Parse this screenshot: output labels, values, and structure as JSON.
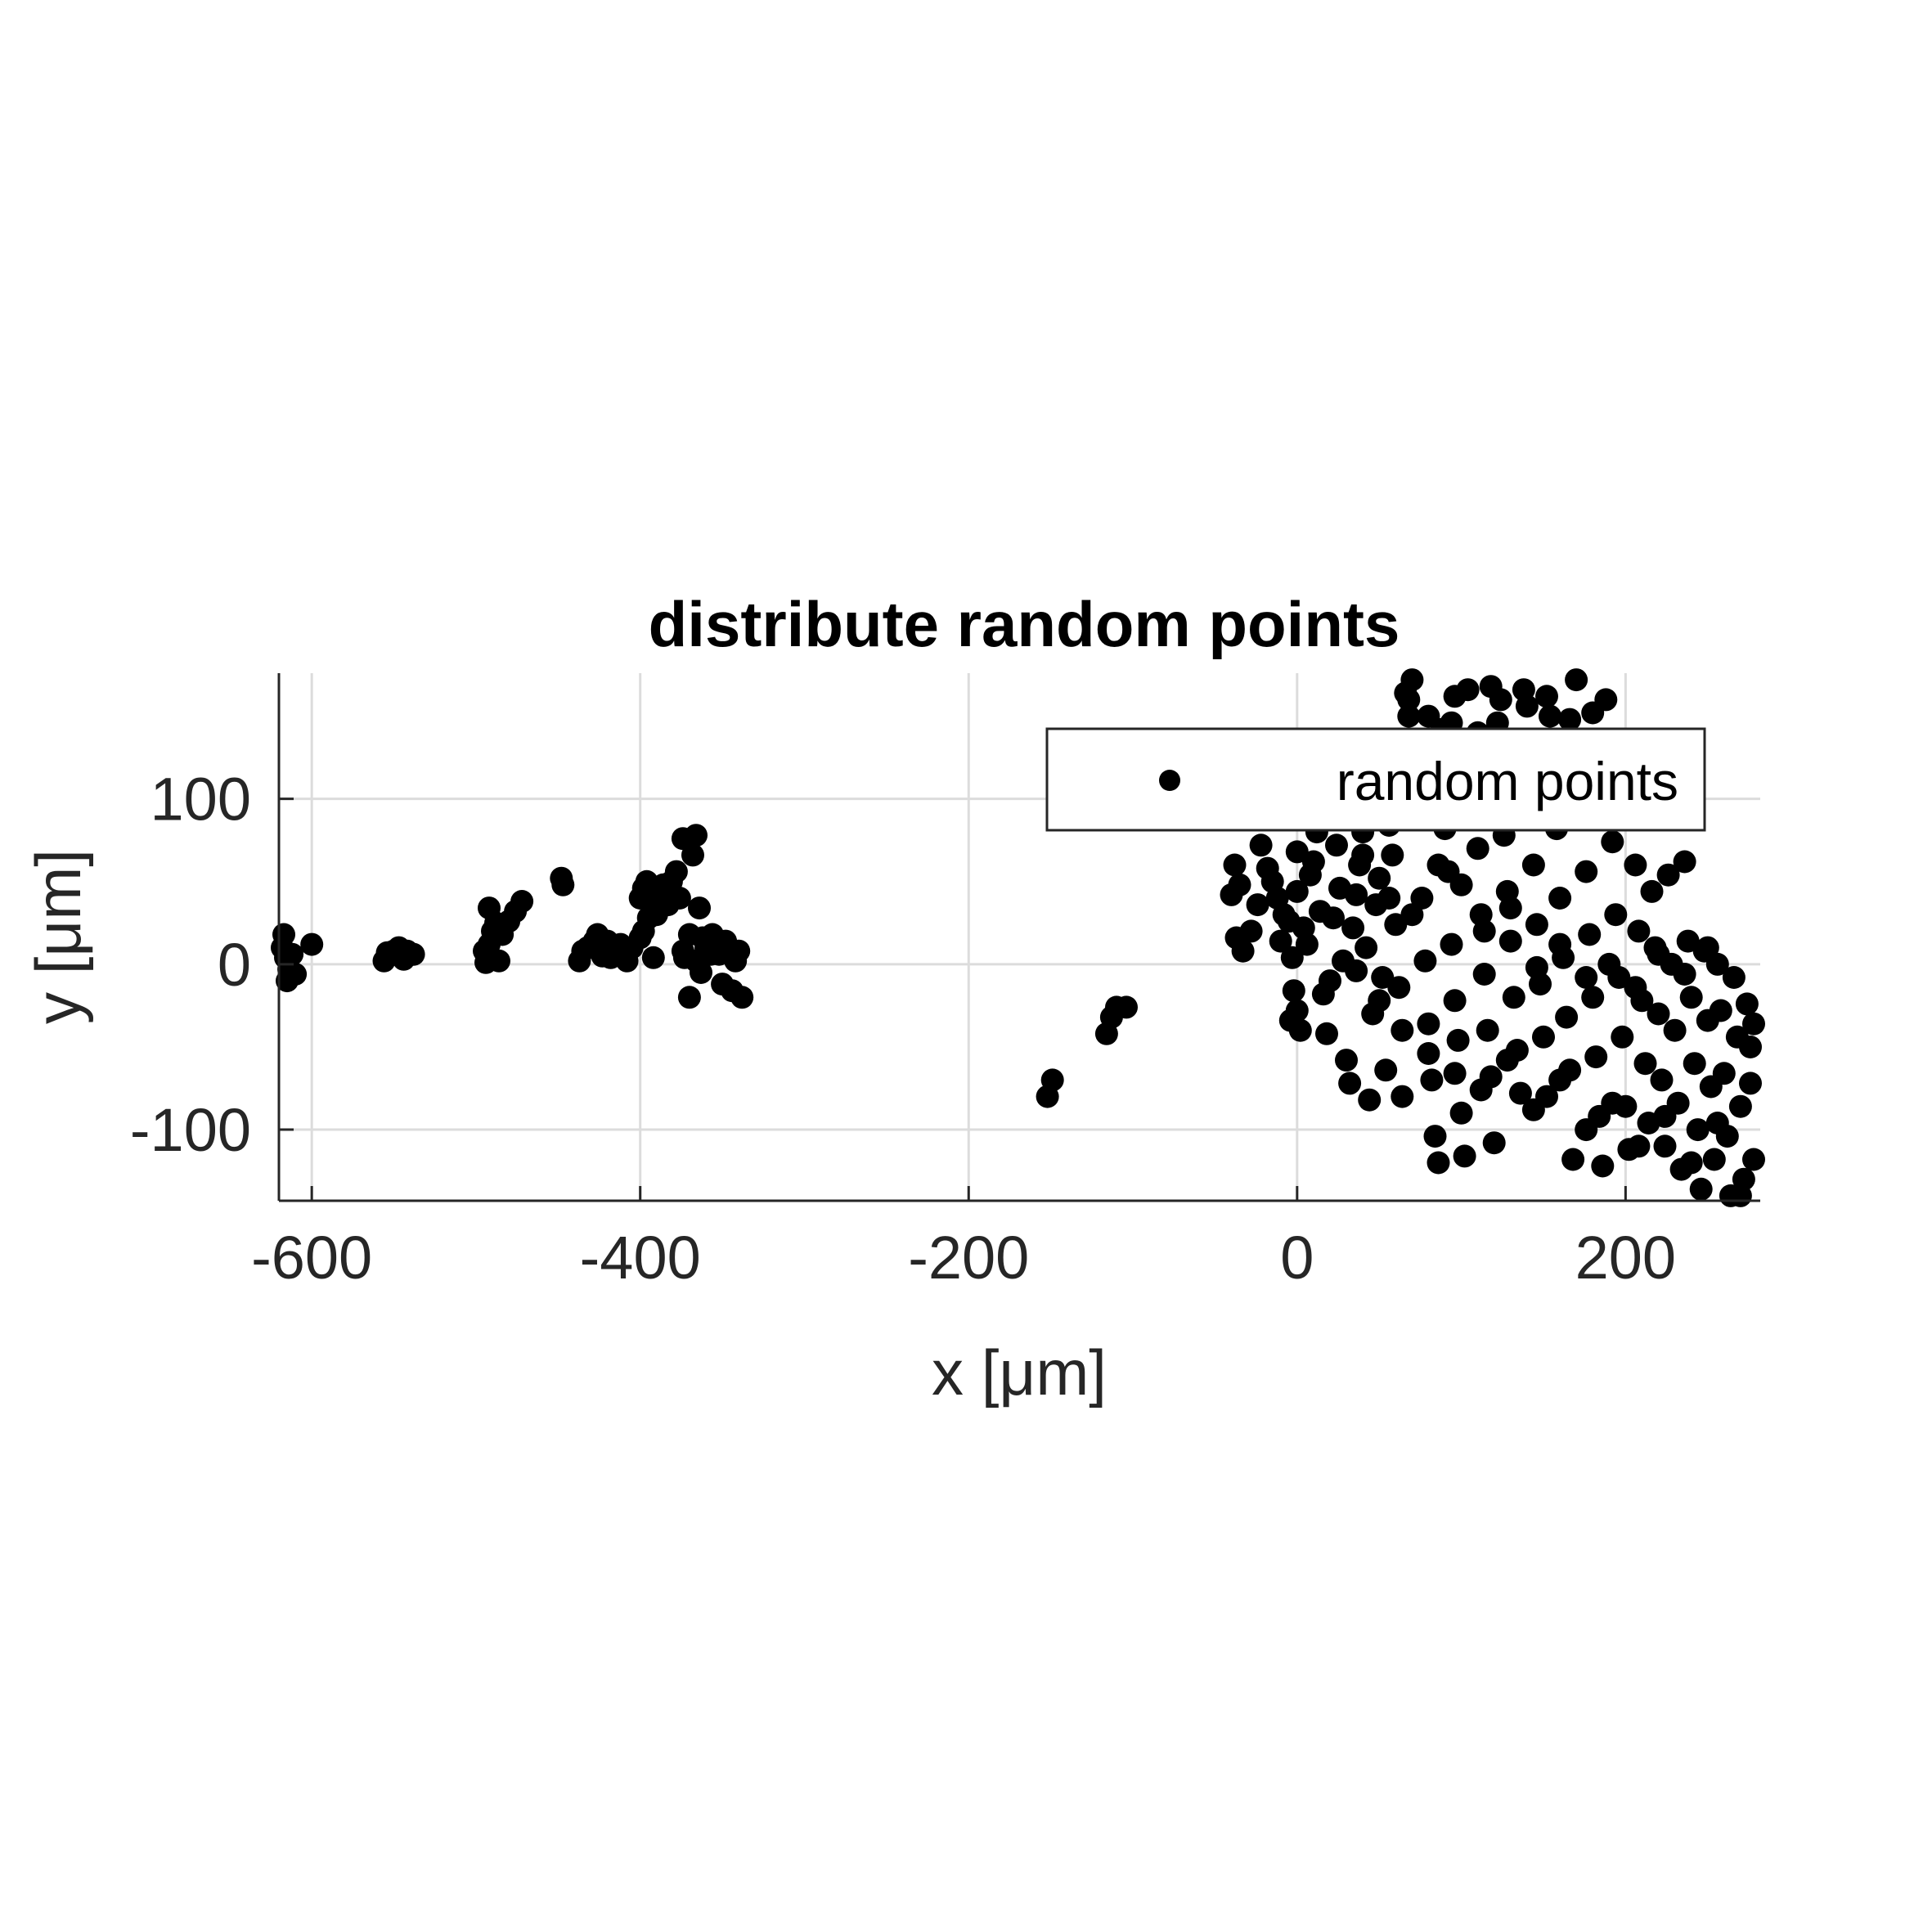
{
  "chart_data": {
    "type": "scatter",
    "title": "distribute random points",
    "xlabel": "x [μm]",
    "ylabel": "y [μm]",
    "xlim": [
      -620,
      282
    ],
    "ylim": [
      -143,
      176
    ],
    "xticks": [
      -600,
      -400,
      -200,
      0,
      200
    ],
    "yticks": [
      -100,
      0,
      100
    ],
    "xtick_labels": [
      "-600",
      "-400",
      "-200",
      "0",
      "200"
    ],
    "ytick_labels": [
      "-100",
      "0",
      "100"
    ],
    "grid": true,
    "legend": {
      "position": "top-right",
      "entries": [
        "random points"
      ]
    },
    "series": [
      {
        "name": "random points",
        "color": "#000000",
        "marker": "filled-circle",
        "points": [
          [
            -617,
            18
          ],
          [
            -618,
            10
          ],
          [
            -616,
            4
          ],
          [
            -614,
            -3
          ],
          [
            -615,
            -10
          ],
          [
            -610,
            -6
          ],
          [
            -612,
            6
          ],
          [
            -600,
            12
          ],
          [
            -556,
            2
          ],
          [
            -554,
            7
          ],
          [
            -550,
            8
          ],
          [
            -547,
            10
          ],
          [
            -544,
            3
          ],
          [
            -542,
            8
          ],
          [
            -538,
            6
          ],
          [
            -494,
            1
          ],
          [
            -495,
            8
          ],
          [
            -492,
            12
          ],
          [
            -490,
            20
          ],
          [
            -488,
            25
          ],
          [
            -486,
            2
          ],
          [
            -484,
            18
          ],
          [
            -480,
            26
          ],
          [
            -476,
            32
          ],
          [
            -472,
            38
          ],
          [
            -492,
            34
          ],
          [
            -448,
            52
          ],
          [
            -447,
            48
          ],
          [
            -437,
            2
          ],
          [
            -435,
            8
          ],
          [
            -432,
            10
          ],
          [
            -428,
            14
          ],
          [
            -426,
            18
          ],
          [
            -423,
            5
          ],
          [
            -420,
            14
          ],
          [
            -418,
            4
          ],
          [
            -415,
            10
          ],
          [
            -412,
            12
          ],
          [
            -408,
            2
          ],
          [
            -405,
            10
          ],
          [
            -400,
            16
          ],
          [
            -398,
            20
          ],
          [
            -395,
            28
          ],
          [
            -400,
            40
          ],
          [
            -398,
            46
          ],
          [
            -396,
            50
          ],
          [
            -392,
            38
          ],
          [
            -390,
            30
          ],
          [
            -388,
            44
          ],
          [
            -386,
            48
          ],
          [
            -392,
            4
          ],
          [
            -383,
            36
          ],
          [
            -381,
            50
          ],
          [
            -378,
            56
          ],
          [
            -376,
            40
          ],
          [
            -374,
            8
          ],
          [
            -370,
            18
          ],
          [
            -374,
            76
          ],
          [
            -366,
            78
          ],
          [
            -368,
            66
          ],
          [
            -364,
            34
          ],
          [
            -366,
            2
          ],
          [
            -363,
            -5
          ],
          [
            -362,
            16
          ],
          [
            -360,
            10
          ],
          [
            -357,
            6
          ],
          [
            -356,
            18
          ],
          [
            -352,
            6
          ],
          [
            -350,
            -12
          ],
          [
            -348,
            14
          ],
          [
            -344,
            -16
          ],
          [
            -342,
            2
          ],
          [
            -340,
            8
          ],
          [
            -338,
            -20
          ],
          [
            -355,
            12
          ],
          [
            -370,
            -20
          ],
          [
            -373,
            4
          ],
          [
            -152,
            -80
          ],
          [
            -149,
            -70
          ],
          [
            -116,
            -42
          ],
          [
            -113,
            -32
          ],
          [
            -110,
            -26
          ],
          [
            -104,
            -26
          ],
          [
            -38,
            60
          ],
          [
            -35,
            48
          ],
          [
            -40,
            42
          ],
          [
            -37,
            16
          ],
          [
            -33,
            8
          ],
          [
            -28,
            20
          ],
          [
            -24,
            36
          ],
          [
            -22,
            72
          ],
          [
            -18,
            58
          ],
          [
            -15,
            50
          ],
          [
            -12,
            40
          ],
          [
            -10,
            14
          ],
          [
            -8,
            30
          ],
          [
            -5,
            26
          ],
          [
            -3,
            4
          ],
          [
            0,
            68
          ],
          [
            0,
            44
          ],
          [
            -2,
            -16
          ],
          [
            -4,
            -34
          ],
          [
            0,
            -28
          ],
          [
            2,
            -40
          ],
          [
            4,
            22
          ],
          [
            6,
            12
          ],
          [
            8,
            54
          ],
          [
            10,
            62
          ],
          [
            12,
            80
          ],
          [
            14,
            32
          ],
          [
            16,
            -18
          ],
          [
            18,
            -42
          ],
          [
            20,
            -10
          ],
          [
            22,
            28
          ],
          [
            24,
            72
          ],
          [
            26,
            46
          ],
          [
            28,
            2
          ],
          [
            30,
            -58
          ],
          [
            32,
            -72
          ],
          [
            34,
            22
          ],
          [
            36,
            42
          ],
          [
            38,
            60
          ],
          [
            40,
            80
          ],
          [
            42,
            10
          ],
          [
            44,
            -82
          ],
          [
            46,
            -30
          ],
          [
            48,
            36
          ],
          [
            50,
            52
          ],
          [
            52,
            -8
          ],
          [
            54,
            -64
          ],
          [
            56,
            84
          ],
          [
            58,
            66
          ],
          [
            60,
            24
          ],
          [
            62,
            -14
          ],
          [
            64,
            -80
          ],
          [
            66,
            164
          ],
          [
            68,
            150
          ],
          [
            70,
            172
          ],
          [
            72,
            118
          ],
          [
            74,
            96
          ],
          [
            76,
            40
          ],
          [
            78,
            2
          ],
          [
            80,
            -36
          ],
          [
            82,
            -70
          ],
          [
            84,
            -104
          ],
          [
            86,
            -120
          ],
          [
            88,
            142
          ],
          [
            90,
            82
          ],
          [
            92,
            56
          ],
          [
            94,
            12
          ],
          [
            96,
            -22
          ],
          [
            98,
            -46
          ],
          [
            100,
            -90
          ],
          [
            102,
            -116
          ],
          [
            104,
            166
          ],
          [
            106,
            128
          ],
          [
            108,
            100
          ],
          [
            110,
            70
          ],
          [
            112,
            30
          ],
          [
            114,
            -6
          ],
          [
            116,
            -40
          ],
          [
            118,
            -68
          ],
          [
            120,
            -108
          ],
          [
            122,
            146
          ],
          [
            124,
            108
          ],
          [
            126,
            78
          ],
          [
            128,
            44
          ],
          [
            130,
            14
          ],
          [
            132,
            -20
          ],
          [
            134,
            -52
          ],
          [
            136,
            -78
          ],
          [
            138,
            166
          ],
          [
            140,
            130
          ],
          [
            142,
            94
          ],
          [
            144,
            60
          ],
          [
            146,
            24
          ],
          [
            148,
            -12
          ],
          [
            150,
            -44
          ],
          [
            152,
            -80
          ],
          [
            154,
            150
          ],
          [
            156,
            116
          ],
          [
            158,
            82
          ],
          [
            160,
            40
          ],
          [
            162,
            4
          ],
          [
            164,
            -32
          ],
          [
            166,
            -64
          ],
          [
            168,
            -118
          ],
          [
            170,
            172
          ],
          [
            172,
            132
          ],
          [
            174,
            96
          ],
          [
            176,
            56
          ],
          [
            178,
            18
          ],
          [
            180,
            -20
          ],
          [
            182,
            -56
          ],
          [
            184,
            -92
          ],
          [
            186,
            -122
          ],
          [
            188,
            160
          ],
          [
            190,
            120
          ],
          [
            192,
            74
          ],
          [
            194,
            30
          ],
          [
            196,
            -8
          ],
          [
            198,
            -44
          ],
          [
            200,
            -86
          ],
          [
            202,
            -112
          ],
          [
            204,
            108
          ],
          [
            206,
            60
          ],
          [
            208,
            20
          ],
          [
            210,
            -22
          ],
          [
            212,
            -60
          ],
          [
            214,
            -96
          ],
          [
            216,
            44
          ],
          [
            218,
            10
          ],
          [
            220,
            -30
          ],
          [
            222,
            -70
          ],
          [
            224,
            -110
          ],
          [
            226,
            54
          ],
          [
            228,
            0
          ],
          [
            230,
            -40
          ],
          [
            232,
            -84
          ],
          [
            234,
            -124
          ],
          [
            236,
            62
          ],
          [
            238,
            14
          ],
          [
            240,
            -20
          ],
          [
            242,
            -60
          ],
          [
            244,
            -100
          ],
          [
            246,
            -136
          ],
          [
            248,
            8
          ],
          [
            250,
            -34
          ],
          [
            252,
            -74
          ],
          [
            254,
            -118
          ],
          [
            256,
            0
          ],
          [
            258,
            -28
          ],
          [
            260,
            -66
          ],
          [
            262,
            -104
          ],
          [
            264,
            -140
          ],
          [
            266,
            -8
          ],
          [
            268,
            -44
          ],
          [
            270,
            -86
          ],
          [
            272,
            -130
          ],
          [
            274,
            -24
          ],
          [
            276,
            -50
          ],
          [
            278,
            -36
          ],
          [
            278,
            -118
          ],
          [
            276,
            -72
          ],
          [
            270,
            -140
          ],
          [
            68,
            160
          ],
          [
            80,
            150
          ],
          [
            94,
            146
          ],
          [
            110,
            140
          ],
          [
            124,
            160
          ],
          [
            140,
            156
          ],
          [
            152,
            162
          ],
          [
            166,
            148
          ],
          [
            180,
            152
          ],
          [
            96,
            162
          ],
          [
            118,
            168
          ],
          [
            40,
            66
          ],
          [
            56,
            40
          ],
          [
            70,
            30
          ],
          [
            86,
            60
          ],
          [
            100,
            48
          ],
          [
            114,
            20
          ],
          [
            130,
            34
          ],
          [
            146,
            -2
          ],
          [
            160,
            12
          ],
          [
            176,
            -8
          ],
          [
            190,
            0
          ],
          [
            206,
            -14
          ],
          [
            220,
            6
          ],
          [
            236,
            -6
          ],
          [
            250,
            10
          ],
          [
            36,
            -4
          ],
          [
            50,
            -22
          ],
          [
            64,
            -40
          ],
          [
            80,
            -54
          ],
          [
            96,
            -66
          ],
          [
            112,
            -76
          ],
          [
            128,
            -58
          ],
          [
            144,
            -88
          ],
          [
            160,
            -70
          ],
          [
            176,
            -100
          ],
          [
            192,
            -84
          ],
          [
            208,
            -110
          ],
          [
            224,
            -92
          ],
          [
            240,
            -120
          ],
          [
            256,
            -96
          ]
        ]
      }
    ]
  }
}
